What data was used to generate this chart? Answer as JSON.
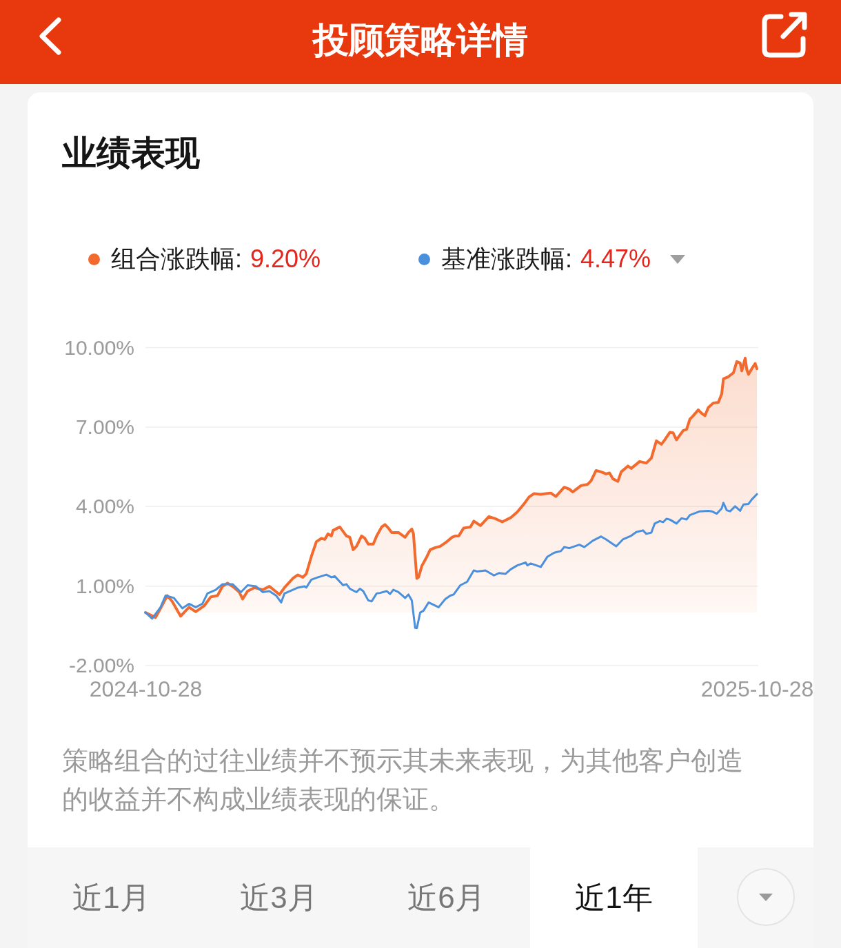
{
  "chart_data": {
    "type": "line",
    "title": "投顾策略详情",
    "subtitle": "业绩表现",
    "series": [
      {
        "name": "组合涨跌幅:",
        "type": "area",
        "color": "#f26a2e",
        "x": [
          "2024-10-28",
          "2024-11-03",
          "2024-11-06",
          "2024-11-10",
          "2024-11-13",
          "2024-11-18",
          "2024-11-23",
          "2024-11-27",
          "2024-12-02",
          "2024-12-06",
          "2024-12-10",
          "2024-12-13",
          "2024-12-16",
          "2024-12-20",
          "2024-12-23",
          "2024-12-25",
          "2024-12-28",
          "2025-01-01",
          "2025-01-06",
          "2025-01-10",
          "2025-01-16",
          "2025-01-19",
          "2025-01-24",
          "2025-01-27",
          "2025-01-30",
          "2025-02-01",
          "2025-02-04",
          "2025-02-07",
          "2025-02-10",
          "2025-02-12",
          "2025-02-14",
          "2025-02-16",
          "2025-02-17",
          "2025-02-21",
          "2025-02-23",
          "2025-02-25",
          "2025-02-27",
          "2025-03-01",
          "2025-03-03",
          "2025-03-06",
          "2025-03-08",
          "2025-03-10",
          "2025-03-13",
          "2025-03-15",
          "2025-03-18",
          "2025-03-20",
          "2025-03-22",
          "2025-03-24",
          "2025-03-28",
          "2025-04-01",
          "2025-04-03",
          "2025-04-05",
          "2025-04-06",
          "2025-04-07",
          "2025-04-08",
          "2025-04-09",
          "2025-04-11",
          "2025-04-14",
          "2025-04-16",
          "2025-04-19",
          "2025-04-22",
          "2025-04-25",
          "2025-04-29",
          "2025-05-01",
          "2025-05-03",
          "2025-05-06",
          "2025-05-10",
          "2025-05-12",
          "2025-05-16",
          "2025-05-21",
          "2025-05-25",
          "2025-05-29",
          "2025-06-03",
          "2025-06-07",
          "2025-06-11",
          "2025-06-14",
          "2025-06-17",
          "2025-06-21",
          "2025-06-24",
          "2025-06-27",
          "2025-06-30",
          "2025-07-05",
          "2025-07-08",
          "2025-07-10",
          "2025-07-15",
          "2025-07-19",
          "2025-07-21",
          "2025-07-24",
          "2025-07-27",
          "2025-07-30",
          "2025-08-01",
          "2025-08-03",
          "2025-08-06",
          "2025-08-08",
          "2025-08-12",
          "2025-08-14",
          "2025-08-19",
          "2025-08-23",
          "2025-08-26",
          "2025-08-29",
          "2025-09-01",
          "2025-09-03",
          "2025-09-06",
          "2025-09-08",
          "2025-09-10",
          "2025-09-14",
          "2025-09-16",
          "2025-09-18",
          "2025-09-20",
          "2025-09-23",
          "2025-09-25",
          "2025-09-27",
          "2025-09-29",
          "2025-10-02",
          "2025-10-05",
          "2025-10-07",
          "2025-10-08",
          "2025-10-11",
          "2025-10-14",
          "2025-10-16",
          "2025-10-18",
          "2025-10-19",
          "2025-10-21",
          "2025-10-22",
          "2025-10-23",
          "2025-10-25",
          "2025-10-27",
          "2025-10-28"
        ],
        "values": [
          0.0,
          -0.19,
          0.16,
          0.64,
          0.42,
          -0.14,
          0.2,
          0.03,
          0.25,
          0.59,
          0.64,
          0.99,
          1.11,
          0.94,
          0.77,
          0.51,
          0.81,
          0.94,
          0.86,
          0.99,
          0.68,
          0.94,
          1.29,
          1.42,
          1.33,
          1.46,
          2.11,
          2.67,
          2.8,
          2.76,
          2.97,
          2.89,
          3.1,
          3.23,
          3.06,
          2.89,
          2.84,
          2.37,
          2.5,
          2.89,
          2.8,
          2.58,
          2.58,
          2.89,
          3.23,
          3.32,
          3.19,
          3.02,
          3.02,
          2.84,
          3.02,
          3.15,
          2.97,
          2.11,
          1.29,
          1.33,
          1.76,
          2.11,
          2.37,
          2.45,
          2.5,
          2.63,
          2.84,
          2.89,
          2.89,
          3.19,
          3.23,
          3.45,
          3.28,
          3.62,
          3.54,
          3.42,
          3.58,
          3.8,
          4.1,
          4.36,
          4.49,
          4.46,
          4.49,
          4.51,
          4.38,
          4.73,
          4.66,
          4.55,
          4.79,
          4.84,
          4.97,
          5.36,
          5.31,
          5.23,
          5.27,
          5.05,
          4.95,
          5.31,
          5.53,
          5.44,
          5.7,
          5.64,
          5.83,
          6.48,
          6.35,
          6.52,
          6.8,
          6.78,
          6.52,
          6.87,
          6.91,
          7.3,
          7.43,
          7.65,
          7.52,
          7.43,
          7.74,
          7.91,
          7.93,
          8.25,
          8.82,
          8.9,
          9.05,
          9.47,
          9.42,
          9.12,
          9.6,
          9.16,
          8.99,
          9.21,
          9.4,
          9.2
        ]
      },
      {
        "name": "基准涨跌幅:",
        "type": "line",
        "color": "#4a90dc",
        "x": [
          "2024-10-28",
          "2024-11-01",
          "2024-11-06",
          "2024-11-09",
          "2024-11-14",
          "2024-11-19",
          "2024-11-23",
          "2024-11-27",
          "2024-12-01",
          "2024-12-04",
          "2024-12-09",
          "2024-12-13",
          "2024-12-19",
          "2024-12-24",
          "2024-12-28",
          "2025-01-02",
          "2025-01-06",
          "2025-01-10",
          "2025-01-14",
          "2025-01-17",
          "2025-01-19",
          "2025-01-24",
          "2025-01-27",
          "2025-01-31",
          "2025-02-01",
          "2025-02-04",
          "2025-02-08",
          "2025-02-13",
          "2025-02-16",
          "2025-02-18",
          "2025-02-23",
          "2025-02-25",
          "2025-02-27",
          "2025-03-03",
          "2025-03-05",
          "2025-03-07",
          "2025-03-10",
          "2025-03-12",
          "2025-03-15",
          "2025-03-17",
          "2025-03-21",
          "2025-03-23",
          "2025-03-25",
          "2025-03-28",
          "2025-04-01",
          "2025-04-03",
          "2025-04-05",
          "2025-04-07",
          "2025-04-08",
          "2025-04-10",
          "2025-04-12",
          "2025-04-15",
          "2025-04-18",
          "2025-04-21",
          "2025-04-25",
          "2025-04-28",
          "2025-04-30",
          "2025-05-04",
          "2025-05-08",
          "2025-05-12",
          "2025-05-14",
          "2025-05-19",
          "2025-05-24",
          "2025-05-27",
          "2025-05-31",
          "2025-06-03",
          "2025-06-07",
          "2025-06-12",
          "2025-06-13",
          "2025-06-15",
          "2025-06-21",
          "2025-06-25",
          "2025-06-29",
          "2025-07-03",
          "2025-07-05",
          "2025-07-08",
          "2025-07-14",
          "2025-07-17",
          "2025-07-22",
          "2025-07-27",
          "2025-07-30",
          "2025-08-05",
          "2025-08-09",
          "2025-08-14",
          "2025-08-17",
          "2025-08-21",
          "2025-08-23",
          "2025-08-26",
          "2025-08-28",
          "2025-08-31",
          "2025-09-02",
          "2025-09-04",
          "2025-09-06",
          "2025-09-10",
          "2025-09-13",
          "2025-09-16",
          "2025-09-18",
          "2025-09-24",
          "2025-09-29",
          "2025-10-01",
          "2025-10-04",
          "2025-10-07",
          "2025-10-08",
          "2025-10-10",
          "2025-10-12",
          "2025-10-15",
          "2025-10-18",
          "2025-10-20",
          "2025-10-23",
          "2025-10-25",
          "2025-10-28"
        ],
        "values": [
          0.0,
          -0.23,
          0.2,
          0.64,
          0.55,
          0.16,
          0.33,
          0.2,
          0.33,
          0.72,
          0.86,
          1.07,
          1.07,
          0.77,
          1.03,
          0.99,
          0.77,
          0.81,
          0.64,
          0.38,
          0.72,
          0.86,
          0.94,
          0.99,
          0.94,
          1.24,
          1.33,
          1.43,
          1.33,
          1.37,
          1.03,
          1.07,
          0.9,
          0.77,
          0.9,
          0.81,
          0.46,
          0.42,
          0.72,
          0.74,
          0.81,
          0.7,
          0.86,
          0.77,
          0.55,
          0.68,
          0.46,
          -0.58,
          -0.59,
          0.0,
          0.07,
          0.38,
          0.29,
          0.2,
          0.51,
          0.64,
          0.68,
          1.03,
          1.16,
          1.59,
          1.55,
          1.59,
          1.4,
          1.49,
          1.46,
          1.63,
          1.78,
          1.89,
          1.78,
          1.85,
          1.72,
          2.11,
          2.26,
          2.32,
          2.47,
          2.43,
          2.56,
          2.47,
          2.71,
          2.87,
          2.76,
          2.5,
          2.76,
          2.9,
          3.04,
          3.1,
          2.97,
          3.02,
          3.36,
          3.45,
          3.41,
          3.54,
          3.51,
          3.36,
          3.56,
          3.51,
          3.68,
          3.82,
          3.84,
          3.82,
          3.73,
          3.93,
          4.14,
          3.86,
          3.82,
          4.01,
          3.84,
          4.08,
          4.1,
          4.27,
          4.47
        ]
      }
    ],
    "xlim": [
      "2024-10-28",
      "2025-10-28"
    ],
    "xticks": [
      "2024-10-28",
      "2025-10-28"
    ],
    "ylim": [
      -2,
      10
    ],
    "yticks": [
      {
        "value": -2,
        "label": "-2.00%"
      },
      {
        "value": 1,
        "label": "1.00%"
      },
      {
        "value": 4,
        "label": "4.00%"
      },
      {
        "value": 7,
        "label": "7.00%"
      },
      {
        "value": 10,
        "label": "10.00%"
      }
    ],
    "grid": "y",
    "legend": "top",
    "annotations": [
      "9.20%",
      "4.47%",
      "策略组合的过往业绩并不预示其未来表现，为其他客户创造的收益并不构成业绩表现的保证。",
      "近1月",
      "近3月",
      "近6月",
      "近1年"
    ]
  }
}
